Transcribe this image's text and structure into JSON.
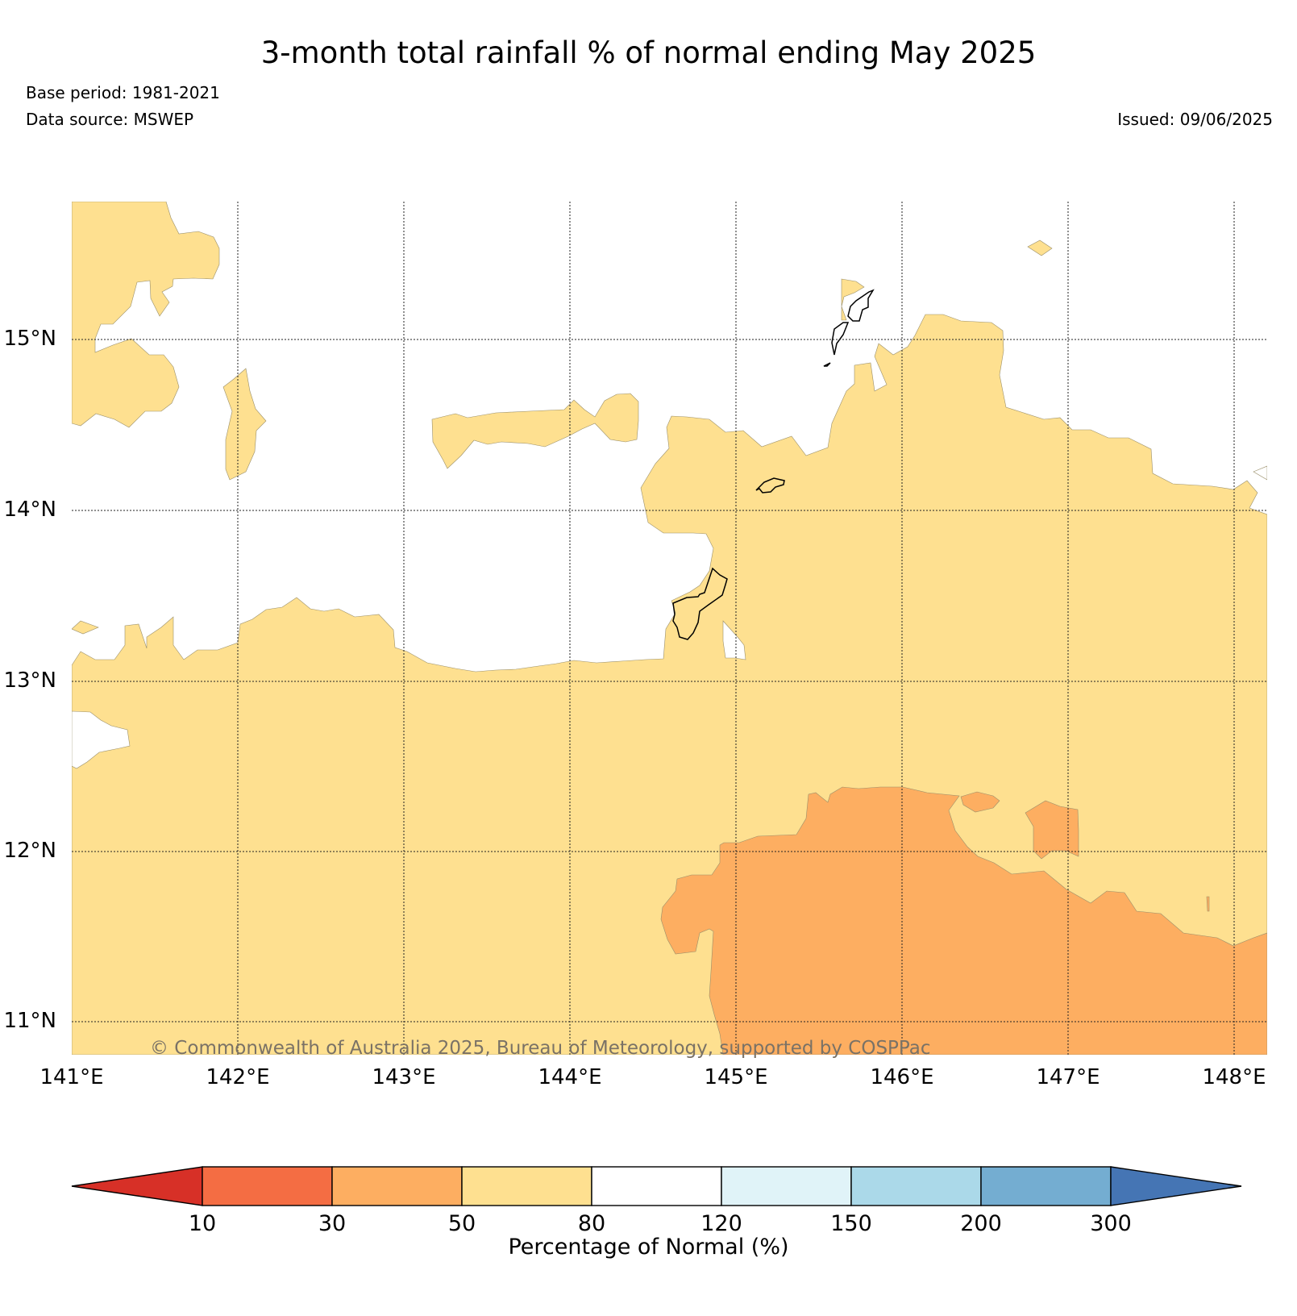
{
  "header": {
    "title": "3-month total rainfall % of normal ending May 2025",
    "base_period": "Base period: 1981-2021",
    "data_source": "Data source: MSWEP",
    "issued": "Issued: 09/06/2025"
  },
  "map": {
    "lat_labels": [
      "15°N",
      "14°N",
      "13°N",
      "12°N",
      "11°N"
    ],
    "lon_labels": [
      "141°E",
      "142°E",
      "143°E",
      "144°E",
      "145°E",
      "146°E",
      "147°E",
      "148°E"
    ],
    "copyright": "© Commonwealth of Australia 2025, Bureau of Meteorology, supported by COSPPac",
    "extent": {
      "lon": [
        141,
        148.2
      ],
      "lat": [
        10.8,
        15.8
      ]
    },
    "grid": true,
    "categories_shown": [
      "50-80",
      "30-50",
      "80-120"
    ]
  },
  "colorbar": {
    "title": "Percentage of Normal (%)",
    "ticks": [
      "10",
      "30",
      "50",
      "80",
      "120",
      "150",
      "200",
      "300"
    ],
    "colors": [
      "#d73027",
      "#f46d43",
      "#fdae61",
      "#fee090",
      "#ffffff",
      "#e0f3f8",
      "#abd9e9",
      "#74add1",
      "#4575b4"
    ],
    "extend": "both"
  }
}
